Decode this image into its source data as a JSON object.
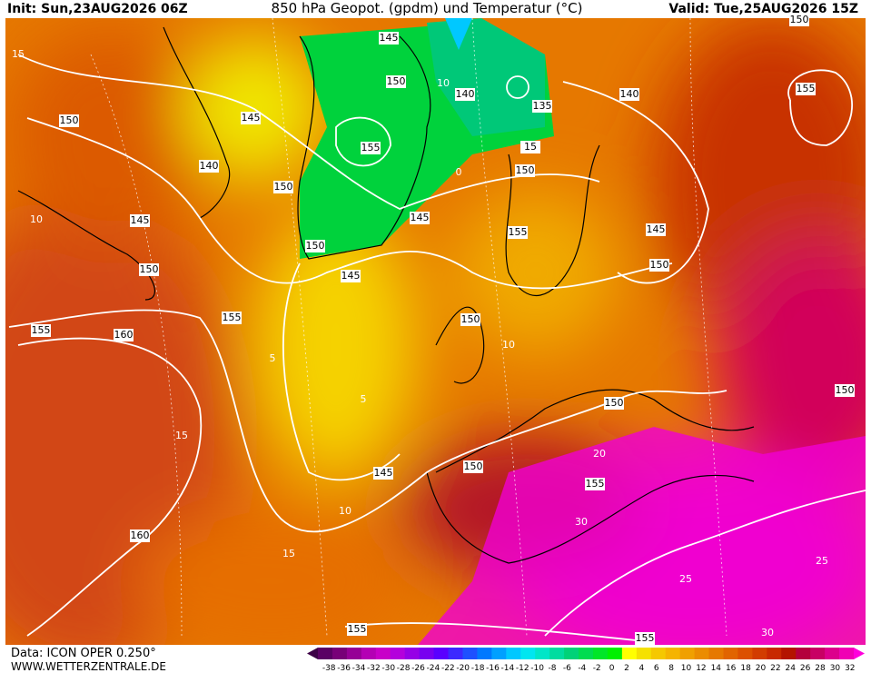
{
  "header": {
    "init": "Init: Sun,23AUG2026 06Z",
    "title": "850 hPa Geopot. (gpdm) und Temperatur (°C)",
    "valid": "Valid: Tue,25AUG2026 15Z"
  },
  "footer": {
    "data": "Data: ICON OPER 0.250°",
    "site": "WWW.WETTERZENTRALE.DE"
  },
  "colorbar": {
    "labels": [
      -38,
      -36,
      -34,
      -32,
      -30,
      -28,
      -26,
      -24,
      -22,
      -20,
      -18,
      -16,
      -14,
      -12,
      -10,
      -8,
      -6,
      -4,
      -2,
      0,
      2,
      4,
      6,
      8,
      10,
      12,
      14,
      16,
      18,
      20,
      22,
      24,
      26,
      28,
      30,
      32
    ],
    "colors": [
      "#3c0046",
      "#5a0064",
      "#780078",
      "#960096",
      "#b400b4",
      "#c800c8",
      "#b400dc",
      "#9600e6",
      "#7800f0",
      "#5a00ff",
      "#3c28ff",
      "#1e50ff",
      "#0078ff",
      "#00a0ff",
      "#00c8ff",
      "#00e6f0",
      "#00e6c8",
      "#00dca0",
      "#00d278",
      "#00dc50",
      "#00e628",
      "#00f000",
      "#ffff00",
      "#f5e100",
      "#f5c800",
      "#f5b400",
      "#f0a000",
      "#eb8c00",
      "#e67800",
      "#e16400",
      "#dc5000",
      "#d23c00",
      "#c82800",
      "#b41400",
      "#b4003c",
      "#c80064",
      "#dc008c",
      "#f000b4",
      "#ff00dc"
    ]
  },
  "contour_labels": [
    "145",
    "150",
    "140",
    "135",
    "145",
    "140",
    "150",
    "155",
    "145",
    "150",
    "145",
    "150",
    "155",
    "150",
    "145",
    "155",
    "150",
    "145",
    "150",
    "155",
    "160",
    "150",
    "150",
    "145",
    "150",
    "155",
    "160",
    "155",
    "155",
    "150",
    "140",
    "155",
    "150",
    "15",
    "10",
    "15",
    "10",
    "5",
    "0",
    "10",
    "15",
    "20",
    "25",
    "30",
    "30",
    "25",
    "10",
    "15",
    "5"
  ]
}
